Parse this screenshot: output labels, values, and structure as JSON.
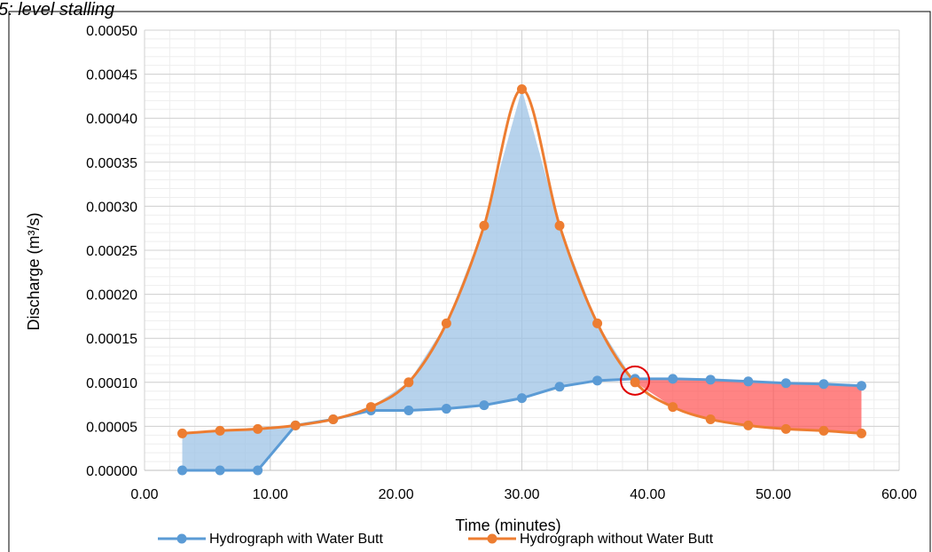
{
  "header_fragment": "5: level stalling",
  "chart_data": {
    "type": "line",
    "xlabel": "Time (minutes)",
    "ylabel": "Discharge (m³/s)",
    "xlim": [
      0,
      60
    ],
    "ylim": [
      0,
      0.0005
    ],
    "x_ticks": [
      "0.00",
      "10.00",
      "20.00",
      "30.00",
      "40.00",
      "50.00",
      "60.00"
    ],
    "y_ticks": [
      "0.00000",
      "0.00005",
      "0.00010",
      "0.00015",
      "0.00020",
      "0.00025",
      "0.00030",
      "0.00035",
      "0.00040",
      "0.00045",
      "0.00050"
    ],
    "grid": true,
    "legend_position": "bottom",
    "series": [
      {
        "name": "Hydrograph with Water Butt",
        "color": "#5B9BD5",
        "x": [
          3,
          6,
          9,
          12,
          15,
          18,
          21,
          24,
          27,
          30,
          33,
          36,
          39,
          42,
          45,
          48,
          51,
          54,
          57
        ],
        "y": [
          0.0,
          0.0,
          0.0,
          5.1e-05,
          5.8e-05,
          6.8e-05,
          6.8e-05,
          7e-05,
          7.4e-05,
          8.2e-05,
          9.5e-05,
          0.000102,
          0.000104,
          0.000104,
          0.000103,
          0.000101,
          9.9e-05,
          9.8e-05,
          9.6e-05
        ]
      },
      {
        "name": "Hydrograph without Water Butt",
        "color": "#ED7D31",
        "x": [
          3,
          6,
          9,
          12,
          15,
          18,
          21,
          24,
          27,
          30,
          33,
          36,
          39,
          42,
          45,
          48,
          51,
          54,
          57
        ],
        "y": [
          4.2e-05,
          4.5e-05,
          4.7e-05,
          5.1e-05,
          5.8e-05,
          7.2e-05,
          0.0001,
          0.000167,
          0.000278,
          0.000433,
          0.000278,
          0.000167,
          0.0001,
          7.2e-05,
          5.8e-05,
          5.1e-05,
          4.7e-05,
          4.5e-05,
          4.2e-05
        ]
      }
    ],
    "shading": {
      "above_color": "#9DC3E6",
      "below_color": "#FF5050"
    },
    "annotation_circle": {
      "x": 39,
      "y": 0.000102,
      "color": "#E00000"
    }
  }
}
